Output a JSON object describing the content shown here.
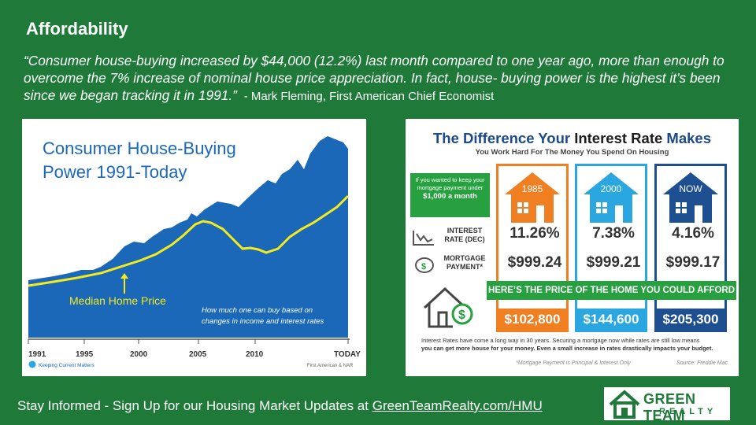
{
  "slide": {
    "title": "Affordability",
    "quote": "“Consumer house-buying increased by $44,000 (12.2%) last month compared to one year ago, more than enough to overcome the 7% increase of nominal house price appreciation. In fact, house- buying power is the highest it’s been since we began tracking it in 1991.”",
    "attribution": "- Mark Fleming, First American Chief Economist",
    "footer_text": "Stay Informed - Sign Up for our Housing Market Updates at",
    "footer_link": "GreenTeamRealty.com/HMU",
    "logo_line1": "GREEN TEAM",
    "logo_line2": "REALTY"
  },
  "colors": {
    "background": "#1f7a3a",
    "chart_blue": "#1b68b9",
    "median_yellow": "#f4ea1c",
    "orange": "#f07f22",
    "light_blue": "#2aa7e0",
    "navy": "#1d4f91",
    "green": "#27a03f"
  },
  "left_chart": {
    "title_line1": "Consumer House-Buying",
    "title_line2": "Power 1991-Today",
    "median_label": "Median Home Price",
    "note_line1": "How much one can buy based on",
    "note_line2": "changes in income and interest rates",
    "source_brand": "Keeping Current Matters",
    "source_credit": "First American & NAR"
  },
  "chart_data": {
    "type": "area",
    "x_ticks": [
      "1991",
      "1995",
      "2000",
      "2005",
      "2010",
      "TODAY"
    ],
    "series": [
      {
        "name": "Consumer House-Buying Power",
        "type": "area",
        "color": "#1b68b9"
      },
      {
        "name": "Median Home Price",
        "type": "line",
        "color": "#f4ea1c"
      }
    ],
    "grid": false
  },
  "right_infographic": {
    "title_prefix": "The Difference Your ",
    "title_highlight": "Interest Rate",
    "title_suffix": " Makes",
    "subtitle": "You Work Hard For The Money You Spend On Housing",
    "green_box_text": "If you wanted to keep your mortgage payment under",
    "green_box_bold": "$1,000 a month",
    "row1_label": "INTEREST RATE (DEC)",
    "row2_label": "MORTGAGE PAYMENT*",
    "banner": "HERE’S THE PRICE OF THE HOME YOU COULD AFFORD",
    "columns": [
      {
        "year": "1985",
        "rate": "11.26%",
        "payment": "$999.24",
        "price": "$102,800",
        "color": "#f07f22"
      },
      {
        "year": "2000",
        "rate": "7.38%",
        "payment": "$999.21",
        "price": "$144,600",
        "color": "#2aa7e0"
      },
      {
        "year": "NOW",
        "rate": "4.16%",
        "payment": "$999.17",
        "price": "$205,300",
        "color": "#1d4f91"
      }
    ],
    "note_line1": "Interest Rates have come a long way in 30 years. Securing a mortgage now while rates are still low means",
    "note_line2": "you can get more house for your money. Even a small increase in rates drastically impacts your budget.",
    "footnote": "*Mortgage Payment is Principal & Interest Only",
    "source": "Source: Freddie Mac"
  }
}
